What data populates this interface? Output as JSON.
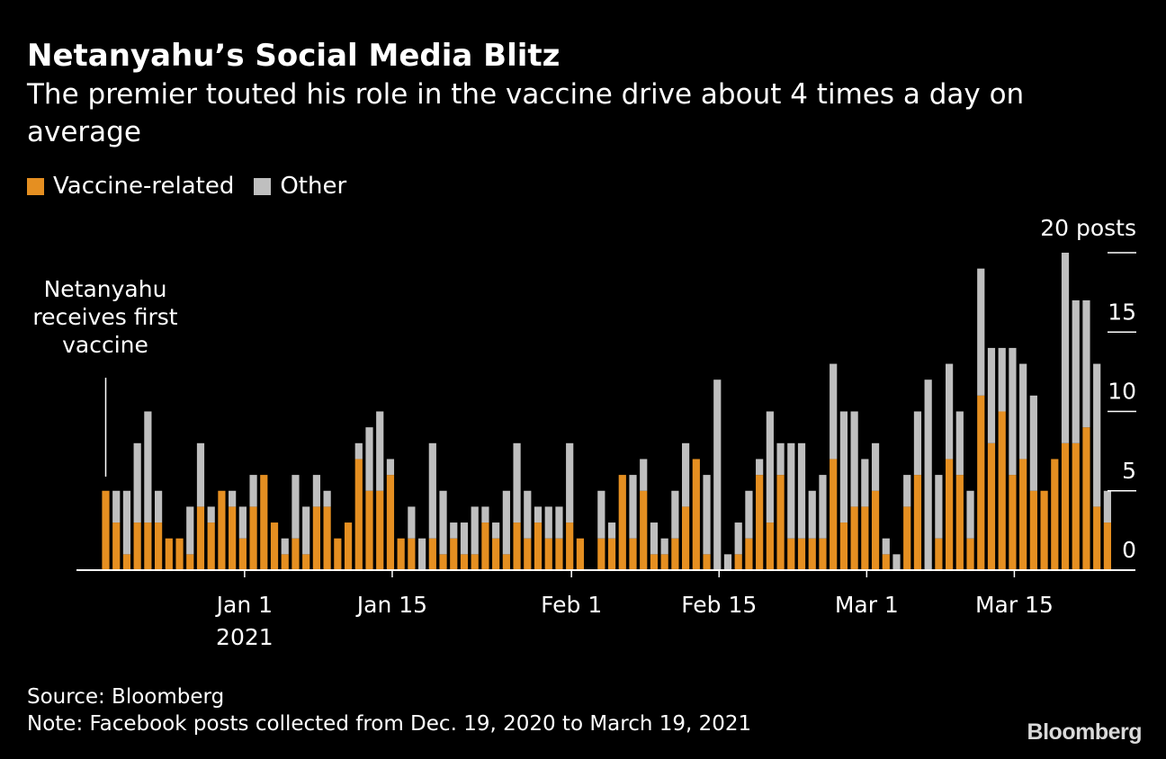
{
  "chart_data": {
    "type": "bar",
    "stacked": true,
    "title": "Netanyahu’s Social Media Blitz",
    "subtitle": "The premier touted his role in the vaccine drive about 4 times a day on average",
    "legend": [
      {
        "name": "Vaccine-related",
        "color": "#e58f21"
      },
      {
        "name": "Other",
        "color": "#bfbfbf"
      }
    ],
    "y_unit_label": "20 posts",
    "y_ticks": [
      "0",
      "5",
      "10",
      "15"
    ],
    "ylim": [
      0,
      20
    ],
    "x_tick_labels": [
      {
        "label": "Jan 1",
        "sublabel": "2021",
        "index": 13
      },
      {
        "label": "Jan 15",
        "index": 27
      },
      {
        "label": "Feb 1",
        "index": 44
      },
      {
        "label": "Feb 15",
        "index": 58
      },
      {
        "label": "Mar 1",
        "index": 72
      },
      {
        "label": "Mar 15",
        "index": 86
      }
    ],
    "annotation": {
      "lines": [
        "Netanyahu",
        "receives first",
        "vaccine"
      ],
      "index": 0
    },
    "first_date": "2020-12-19",
    "last_date": "2021-03-19",
    "series": [
      {
        "name": "Vaccine-related",
        "values": [
          5,
          3,
          1,
          3,
          3,
          3,
          2,
          2,
          1,
          4,
          3,
          5,
          4,
          2,
          4,
          6,
          3,
          1,
          2,
          1,
          4,
          4,
          2,
          3,
          7,
          5,
          5,
          6,
          2,
          2,
          0,
          2,
          1,
          2,
          1,
          1,
          3,
          2,
          1,
          3,
          2,
          3,
          2,
          2,
          3,
          2,
          0,
          2,
          2,
          6,
          2,
          5,
          1,
          1,
          2,
          4,
          7,
          1,
          0,
          0,
          1,
          2,
          6,
          3,
          6,
          2,
          2,
          2,
          2,
          7,
          3,
          4,
          4,
          5,
          1,
          0,
          4,
          6,
          0,
          2,
          7,
          6,
          2,
          11,
          8,
          10,
          6,
          7,
          5,
          5,
          7,
          8,
          8,
          9,
          4,
          3
        ]
      },
      {
        "name": "Other",
        "values": [
          0,
          2,
          4,
          5,
          7,
          2,
          0,
          0,
          3,
          4,
          1,
          0,
          1,
          2,
          2,
          0,
          0,
          1,
          4,
          3,
          2,
          1,
          0,
          0,
          1,
          4,
          5,
          1,
          0,
          2,
          2,
          6,
          4,
          1,
          2,
          3,
          1,
          1,
          4,
          5,
          3,
          1,
          2,
          2,
          5,
          0,
          0,
          3,
          1,
          0,
          4,
          2,
          2,
          1,
          3,
          4,
          0,
          5,
          12,
          1,
          2,
          3,
          1,
          7,
          2,
          6,
          6,
          3,
          4,
          6,
          7,
          6,
          3,
          3,
          1,
          1,
          2,
          4,
          12,
          4,
          6,
          4,
          3,
          8,
          6,
          4,
          8,
          6,
          6,
          0,
          0,
          12,
          9,
          8,
          9,
          2
        ]
      }
    ]
  },
  "footer": {
    "source": "Source: Bloomberg",
    "note": "Note: Facebook posts collected from Dec. 19, 2020 to March 19, 2021",
    "brand": "Bloomberg"
  }
}
